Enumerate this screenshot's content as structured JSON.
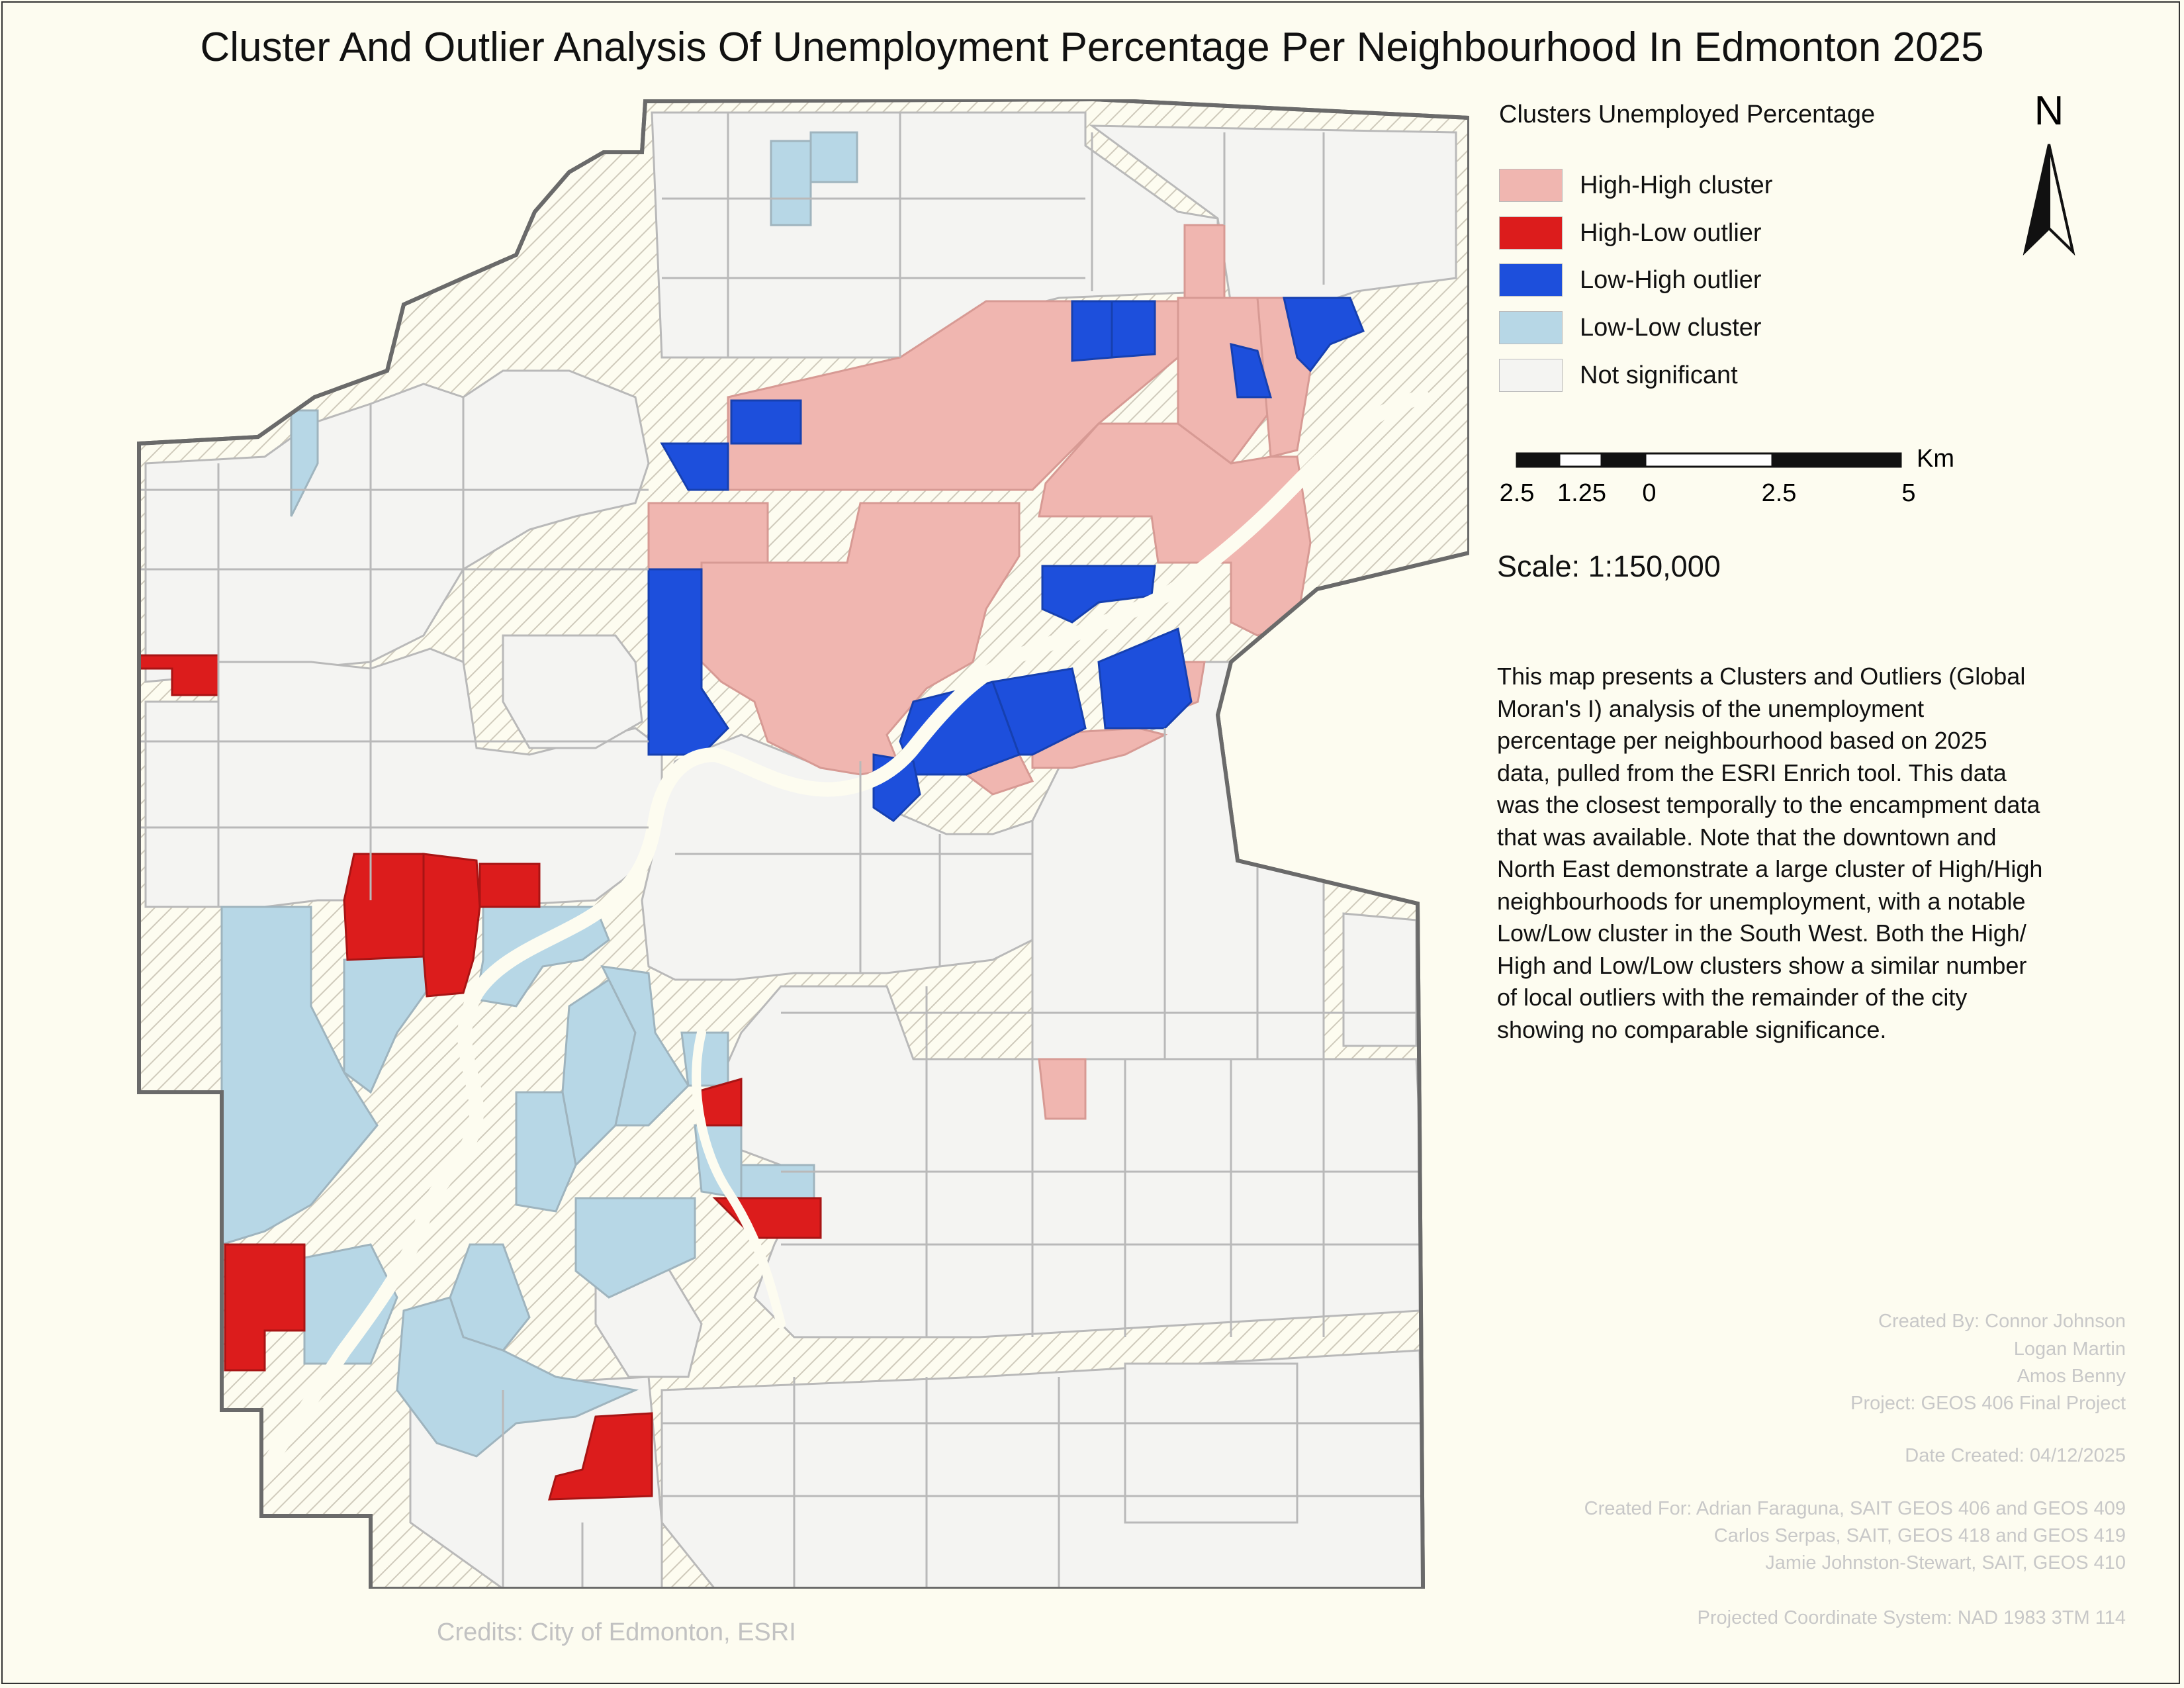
{
  "title": "Cluster And Outlier Analysis Of Unemployment Percentage Per Neighbourhood In Edmonton 2025",
  "legend": {
    "title": "Clusters Unemployed Percentage",
    "items": [
      {
        "label": "High-High cluster",
        "color": "#f0b6b0"
      },
      {
        "label": "High-Low outlier",
        "color": "#dc1c1c"
      },
      {
        "label": "Low-High outlier",
        "color": "#1d4fdc"
      },
      {
        "label": "Low-Low cluster",
        "color": "#b7d7e6"
      },
      {
        "label": "Not significant",
        "color": "#f4f4f2"
      }
    ]
  },
  "north_arrow": {
    "label": "N",
    "icon": "north-arrow-icon"
  },
  "scale_bar": {
    "unit": "Km",
    "tick_labels": [
      "2.5",
      "1.25",
      "0",
      "2.5",
      "5"
    ]
  },
  "scale_text": "Scale: 1:150,000",
  "description": "This map presents a Clusters and Outliers (Global Moran's I) analysis of the unemployment percentage per neighbourhood based on 2025 data, pulled from the ESRI Enrich tool. This data was the closest temporally to the encampment data that was available. Note that the downtown and North East demonstrate a large cluster of High/High neighbourhoods for unemployment, with a notable Low/Low cluster in the South West. Both the High/ High and Low/Low clusters show a similar number of local outliers with the remainder of the city showing no comparable significance.",
  "credits": {
    "created_by": [
      "Created By: Connor Johnson",
      "Logan Martin",
      "Amos Benny",
      "Project: GEOS 406 Final Project"
    ],
    "date_created": "Date Created: 04/12/2025",
    "created_for": [
      "Created For: Adrian Faraguna, SAIT GEOS 406 and GEOS 409",
      "Carlos Serpas, SAIT, GEOS 418 and GEOS 419",
      "Jamie Johnston-Stewart, SAIT, GEOS 410"
    ],
    "coordinate_system": "Projected Coordinate System: NAD 1983 3TM 114"
  },
  "map_credits": "Credits: City of Edmonton, ESRI",
  "colors": {
    "background": "#fdfcf0",
    "city_boundary": "#6a6a6a",
    "hatch": "#cfcabb",
    "road_lines": "#b9b9b9",
    "river": "#fdfcf0"
  }
}
